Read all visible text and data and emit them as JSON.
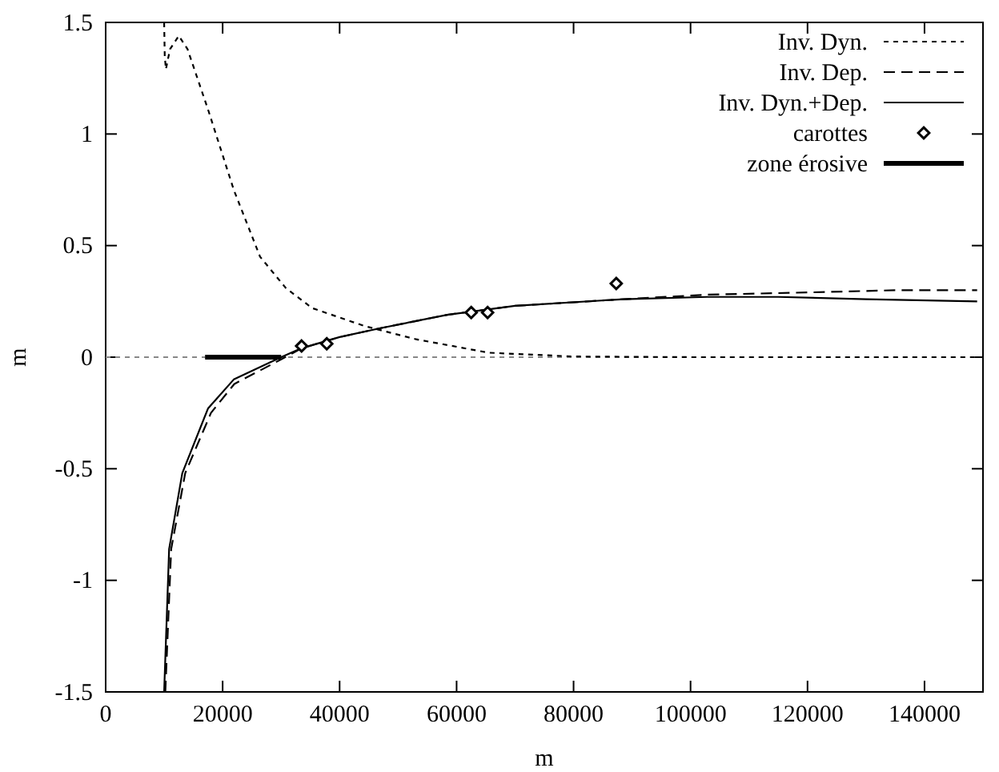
{
  "chart_data": {
    "type": "line",
    "xlabel": "m",
    "ylabel": "m",
    "xlim": [
      0,
      150000
    ],
    "ylim": [
      -1.5,
      1.5
    ],
    "xticks": [
      0,
      20000,
      40000,
      60000,
      80000,
      100000,
      120000,
      140000
    ],
    "yticks": [
      -1.5,
      -1,
      -0.5,
      0,
      0.5,
      1,
      1.5
    ],
    "legend": "top right",
    "grid": false,
    "ref_lines": [
      {
        "axis": "y",
        "value": 0,
        "color": "#888888",
        "line_style": "dotted"
      }
    ],
    "series": [
      {
        "name": "Inv. Dyn.",
        "color": "#000000",
        "line_style": "dotted",
        "x": [
          10000,
          10100,
          10300,
          11000,
          12500,
          14000,
          17500,
          21900,
          26400,
          30800,
          35300,
          44200,
          53100,
          65500,
          80000,
          100000,
          150000
        ],
        "values": [
          1.5,
          1.35,
          1.29,
          1.38,
          1.44,
          1.38,
          1.11,
          0.75,
          0.45,
          0.31,
          0.22,
          0.14,
          0.08,
          0.02,
          0.003,
          0,
          0
        ]
      },
      {
        "name": "Inv. Dep.",
        "color": "#000000",
        "line_style": "dashed",
        "x": [
          10200,
          11200,
          13600,
          18000,
          22000,
          30000,
          33500,
          40000,
          47000,
          58400,
          70000,
          88600,
          102900,
          120000,
          135000,
          149000
        ],
        "values": [
          -1.5,
          -0.86,
          -0.52,
          -0.25,
          -0.12,
          -0.01,
          0.04,
          0.09,
          0.13,
          0.19,
          0.23,
          0.26,
          0.28,
          0.29,
          0.3,
          0.3
        ]
      },
      {
        "name": "Inv. Dyn.+Dep.",
        "color": "#000000",
        "line_style": "solid",
        "x": [
          10000,
          10850,
          13100,
          17500,
          21900,
          30000,
          33500,
          40000,
          47000,
          58400,
          70000,
          88600,
          102900,
          115000,
          130000,
          149000
        ],
        "values": [
          -1.5,
          -0.86,
          -0.52,
          -0.23,
          -0.1,
          0,
          0.04,
          0.09,
          0.13,
          0.19,
          0.23,
          0.26,
          0.27,
          0.27,
          0.26,
          0.25
        ]
      },
      {
        "name": "carottes",
        "type": "scatter",
        "marker": "diamond",
        "color": "#000000",
        "x": [
          33500,
          37800,
          62500,
          65300,
          87300
        ],
        "values": [
          0.05,
          0.06,
          0.2,
          0.2,
          0.33
        ]
      },
      {
        "name": "zone érosive",
        "color": "#000000",
        "line_style": "solid",
        "x": [
          17000,
          30000
        ],
        "values": [
          0,
          0
        ]
      }
    ]
  }
}
